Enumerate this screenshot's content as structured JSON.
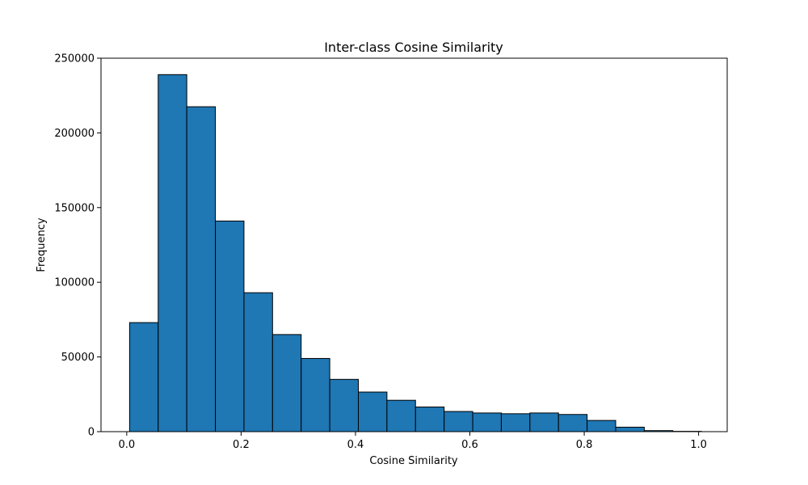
{
  "chart_data": {
    "type": "bar",
    "title": "Inter-class Cosine Similarity",
    "xlabel": "Cosine Similarity",
    "ylabel": "Frequency",
    "xlim": [
      -0.045,
      1.05
    ],
    "ylim": [
      0,
      250000
    ],
    "x_ticks": [
      0.0,
      0.2,
      0.4,
      0.6,
      0.8,
      1.0
    ],
    "x_tick_labels": [
      "0.0",
      "0.2",
      "0.4",
      "0.6",
      "0.8",
      "1.0"
    ],
    "y_ticks": [
      0,
      50000,
      100000,
      150000,
      200000,
      250000
    ],
    "y_tick_labels": [
      "0",
      "50000",
      "100000",
      "150000",
      "200000",
      "250000"
    ],
    "bin_edges": [
      0.005,
      0.055,
      0.105,
      0.155,
      0.205,
      0.255,
      0.305,
      0.355,
      0.405,
      0.455,
      0.505,
      0.555,
      0.605,
      0.655,
      0.705,
      0.755,
      0.805,
      0.855,
      0.905,
      0.955,
      1.005
    ],
    "values": [
      73000,
      239000,
      217500,
      141000,
      93000,
      65000,
      49000,
      35000,
      26500,
      21000,
      16500,
      13500,
      12500,
      12000,
      12500,
      11500,
      7500,
      3000,
      700,
      200
    ],
    "bar_color": "#1f77b4",
    "edge_color": "#000000",
    "grid": false,
    "legend": "none"
  }
}
